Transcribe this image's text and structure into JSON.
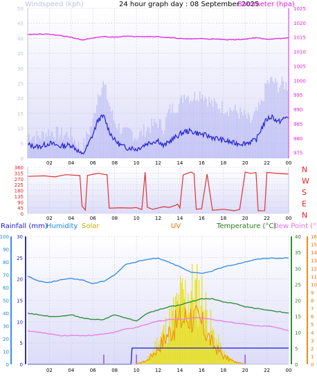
{
  "colors": {
    "wind_avg": "#2a2ad0",
    "wind_gust": "#b8b8f4",
    "barometer": "#e020e0",
    "direction": "#e03030",
    "humidity": "#3a8ee0",
    "temperature": "#2f8f3a",
    "dew_point": "#e880e8",
    "solar": "#e8e000",
    "uv": "#f08a10",
    "rainfall": "#2a2ad0",
    "rain_rate": "#9040c0",
    "wind_label": "#c0c0e0",
    "baro_label": "#e020e0",
    "dir_label": "#e02020",
    "rain_label": "#1a1ad0",
    "humidity_label": "#1a8ad0",
    "solar_label": "#c0b000",
    "uv_label": "#f07000",
    "temperature_label": "#2a7a1a",
    "dew_label": "#e070e0"
  },
  "chart_data": [
    {
      "type": "line",
      "title": "24 hour graph day : 08 September 2025",
      "ylabel": "Windspeed (kph)",
      "y2label": "Barometer (hpa)",
      "ylim": [
        0,
        50
      ],
      "y2lim": [
        973,
        1025
      ],
      "x_ticks": [
        "02",
        "04",
        "06",
        "08",
        "10",
        "12",
        "14",
        "16",
        "18",
        "20",
        "22",
        "00"
      ],
      "y_ticks": [
        "0",
        "5",
        "10",
        "15",
        "20",
        "25",
        "30",
        "35",
        "40",
        "45",
        "50"
      ],
      "y2_ticks": [
        "975",
        "980",
        "985",
        "990",
        "995",
        "1000",
        "1005",
        "1010",
        "1015",
        "1020",
        "1025"
      ],
      "x_hours": [
        0,
        1,
        2,
        3,
        4,
        4.5,
        5,
        5.5,
        6,
        6.5,
        7,
        7.5,
        8,
        8.5,
        9,
        9.5,
        10,
        11,
        12,
        12.5,
        13,
        14,
        14.5,
        15,
        16,
        17,
        18,
        19,
        20,
        20.5,
        21,
        21.5,
        22,
        22.5,
        23,
        23.5,
        24
      ],
      "series": [
        {
          "key": "gust",
          "values": [
            8,
            7,
            9,
            8,
            8,
            5,
            3,
            8,
            12,
            22,
            25,
            18,
            12,
            10,
            8,
            9,
            7,
            10,
            12,
            10,
            16,
            18,
            22,
            20,
            22,
            18,
            17,
            16,
            14,
            12,
            15,
            18,
            25,
            26,
            24,
            25,
            24
          ]
        },
        {
          "name": "Windspeed (kph)",
          "key": "wind",
          "values": [
            4.5,
            3.8,
            5,
            4,
            4.5,
            3,
            1,
            4,
            8,
            13,
            14,
            9,
            6,
            4.5,
            3.5,
            3.5,
            3,
            5,
            6,
            4,
            5.5,
            8,
            9,
            9,
            8,
            7,
            6,
            5,
            5,
            5.5,
            6,
            10,
            13,
            14,
            12,
            13,
            14
          ]
        },
        {
          "name": "Barometer (hpa)",
          "key": "baro",
          "values": [
            1016,
            1016,
            1016,
            1015.5,
            1015,
            1014.5,
            1014,
            1014.3,
            1014.6,
            1015,
            1015.2,
            1015.1,
            1015,
            1015.2,
            1015.4,
            1015.2,
            1015.3,
            1015.2,
            1015.2,
            1015,
            1014.8,
            1014.6,
            1014.3,
            1014.4,
            1014.5,
            1014.3,
            1014.2,
            1014.1,
            1014.3,
            1014.6,
            1014.8,
            1014.5,
            1014.2,
            1014.4,
            1014.6,
            1014.5,
            1014.7
          ]
        }
      ]
    },
    {
      "type": "line",
      "ylim": [
        0,
        360
      ],
      "y_ticks": [
        "0",
        "45",
        "90",
        "135",
        "180",
        "225",
        "270",
        "315",
        "360"
      ],
      "compass_labels": [
        "N",
        "W",
        "S",
        "E",
        "N"
      ],
      "x_ticks": [
        "02",
        "04",
        "06",
        "08",
        "10",
        "12",
        "14",
        "16",
        "18",
        "20",
        "22",
        "00"
      ],
      "series": [
        {
          "key": "direction",
          "points": [
            [
              0,
              290
            ],
            [
              1.5,
              290
            ],
            [
              2.5,
              285
            ],
            [
              3.5,
              300
            ],
            [
              4.8,
              295
            ],
            [
              5.0,
              60
            ],
            [
              5.3,
              30
            ],
            [
              5.5,
              300
            ],
            [
              6.5,
              310
            ],
            [
              7.0,
              305
            ],
            [
              7.3,
              305
            ],
            [
              7.5,
              40
            ],
            [
              8.5,
              45
            ],
            [
              9.5,
              40
            ],
            [
              10.0,
              50
            ],
            [
              10.5,
              30
            ],
            [
              10.8,
              320
            ],
            [
              11.0,
              50
            ],
            [
              11.5,
              35
            ],
            [
              12.5,
              55
            ],
            [
              13.0,
              50
            ],
            [
              13.5,
              60
            ],
            [
              13.8,
              70
            ],
            [
              14.0,
              40
            ],
            [
              14.3,
              300
            ],
            [
              15.0,
              320
            ],
            [
              15.3,
              310
            ],
            [
              15.5,
              30
            ],
            [
              16.0,
              35
            ],
            [
              16.5,
              310
            ],
            [
              17.0,
              25
            ],
            [
              18.0,
              30
            ],
            [
              19.0,
              20
            ],
            [
              19.5,
              30
            ],
            [
              20.0,
              320
            ],
            [
              20.5,
              310
            ],
            [
              21.0,
              315
            ],
            [
              21.2,
              20
            ],
            [
              21.8,
              20
            ],
            [
              22.0,
              320
            ],
            [
              23.0,
              315
            ],
            [
              24.0,
              310
            ]
          ]
        }
      ]
    },
    {
      "type": "line",
      "legend": [
        "Rainfall (mm)",
        "Humidity",
        "Solar",
        "UV",
        "Temperature (°C)",
        "Dew Point (°C)"
      ],
      "rain_ylim": [
        0,
        30
      ],
      "rain_ticks": [
        "0",
        "5",
        "10",
        "15",
        "20",
        "25",
        "30"
      ],
      "humidity_ylim": [
        0,
        100
      ],
      "humidity_ticks": [
        "0",
        "10",
        "20",
        "30",
        "40",
        "50",
        "60",
        "70",
        "80",
        "90",
        "100"
      ],
      "temperature_ylim": [
        0,
        40
      ],
      "temperature_ticks": [
        "0",
        "5",
        "10",
        "15",
        "20",
        "25",
        "30",
        "35",
        "40"
      ],
      "uv_ylim": [
        0,
        16
      ],
      "uv_ticks": [
        "0",
        "1",
        "2",
        "3",
        "4",
        "5",
        "6",
        "7",
        "8",
        "9",
        "10",
        "11",
        "12",
        "13",
        "14",
        "15",
        "16"
      ],
      "x_ticks": [
        "02",
        "04",
        "06",
        "08",
        "10",
        "12",
        "14",
        "16",
        "18",
        "20",
        "22",
        "00"
      ],
      "x_hours": [
        0,
        1,
        2,
        3,
        4,
        5,
        6,
        7,
        8,
        9,
        10,
        11,
        12,
        13,
        14,
        15,
        16,
        17,
        18,
        19,
        20,
        21,
        22,
        23,
        24
      ],
      "series": [
        {
          "name": "Humidity",
          "key": "humidity",
          "values": [
            69,
            65,
            64,
            66,
            67,
            66,
            63,
            65,
            70,
            78,
            80,
            82,
            83,
            80,
            76,
            72,
            71,
            73,
            76,
            78,
            80,
            82,
            83,
            83,
            83
          ]
        },
        {
          "name": "Temperature (°C)",
          "key": "temperature",
          "values": [
            16,
            15.5,
            15,
            15,
            15.5,
            14.5,
            14,
            14,
            15.5,
            14.5,
            13.5,
            16,
            17,
            18,
            18.5,
            19.5,
            20.5,
            20.5,
            19.5,
            19,
            18,
            17.5,
            17,
            16.5,
            16
          ]
        },
        {
          "name": "Dew Point (°C)",
          "key": "dew",
          "values": [
            10.5,
            10,
            9.5,
            9,
            9,
            9,
            9,
            9.5,
            10,
            11,
            11.5,
            12.5,
            13.5,
            14,
            14,
            14.5,
            14.5,
            14,
            13.5,
            13,
            12.5,
            12,
            12,
            11.5,
            10.5
          ]
        },
        {
          "name": "Rainfall (mm)",
          "key": "rainfall",
          "values": [
            0,
            0,
            0,
            0,
            0,
            0,
            0,
            0,
            0,
            0,
            3.8,
            3.8,
            3.8,
            3.8,
            3.8,
            3.8,
            3.8,
            3.8,
            3.8,
            3.8,
            3.8,
            3.8,
            3.8,
            3.8,
            3.8
          ]
        },
        {
          "name": "Solar",
          "key": "solar",
          "values": [
            0,
            0,
            0,
            0,
            0,
            0,
            0,
            0,
            0,
            0,
            0,
            40,
            220,
            380,
            600,
            700,
            650,
            300,
            100,
            30,
            0,
            0,
            0,
            0,
            0
          ]
        },
        {
          "name": "UV",
          "key": "uv",
          "values": [
            0,
            0,
            0,
            0,
            0,
            0,
            0,
            0,
            0,
            0,
            0,
            0.5,
            2,
            4,
            5.5,
            6,
            5,
            2.5,
            1,
            0.3,
            0,
            0,
            0,
            0,
            0
          ]
        }
      ],
      "solar_scale_max": 1100,
      "rain_rate_spikes": [
        7,
        10,
        20
      ]
    }
  ]
}
